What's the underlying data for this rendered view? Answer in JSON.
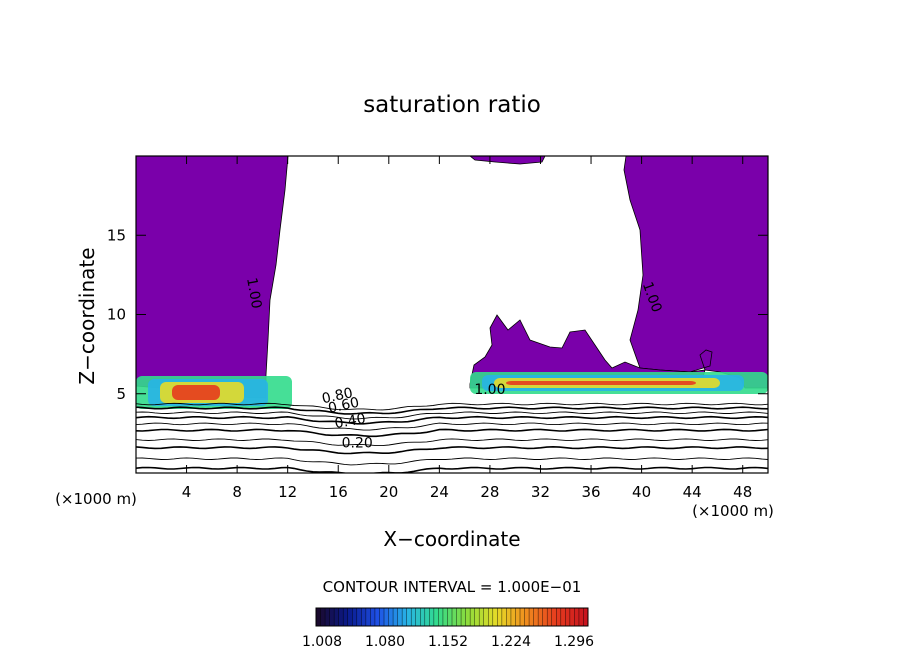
{
  "chart_data": {
    "type": "heatmap",
    "title": "saturation ratio",
    "xlabel": "X−coordinate",
    "ylabel": "Z−coordinate",
    "x_unit_left": "(×1000 m)",
    "x_unit_right": "(×1000 m)",
    "xlim": [
      0,
      50
    ],
    "ylim": [
      0,
      20
    ],
    "x_ticks": [
      4,
      8,
      12,
      16,
      20,
      24,
      28,
      32,
      36,
      40,
      44,
      48
    ],
    "y_ticks": [
      5,
      10,
      15
    ],
    "contour_interval_text": "CONTOUR INTERVAL = 1.000E−01",
    "colorbar": {
      "tick_labels": [
        "1.008",
        "1.080",
        "1.152",
        "1.224",
        "1.296"
      ],
      "colors": [
        "#1a0a2e",
        "#0a1a8c",
        "#1e50e6",
        "#28b4e6",
        "#32dc8c",
        "#8cdc3c",
        "#e6dc28",
        "#f08c1e",
        "#e63c1e",
        "#c8141e"
      ]
    },
    "saturated_fill_color": "#7a00aa",
    "contour_labels": [
      {
        "text": "1.00",
        "x": 9.0,
        "z": 11.3,
        "angle": 80
      },
      {
        "text": "1.00",
        "x": 40.5,
        "z": 11.0,
        "angle": 70
      },
      {
        "text": "1.00",
        "x": 28.0,
        "z": 5.0,
        "angle": 0
      },
      {
        "text": "0.80",
        "x": 16.0,
        "z": 4.6,
        "angle": -12
      },
      {
        "text": "0.60",
        "x": 16.5,
        "z": 4.0,
        "angle": -12
      },
      {
        "text": "0.40",
        "x": 17.0,
        "z": 3.0,
        "angle": -10
      },
      {
        "text": "0.20",
        "x": 17.5,
        "z": 1.6,
        "angle": 0
      }
    ],
    "contour_levels_z": [
      0.3,
      0.9,
      1.6,
      2.1,
      2.7,
      3.1,
      3.5,
      3.8,
      4.1,
      4.35
    ]
  }
}
